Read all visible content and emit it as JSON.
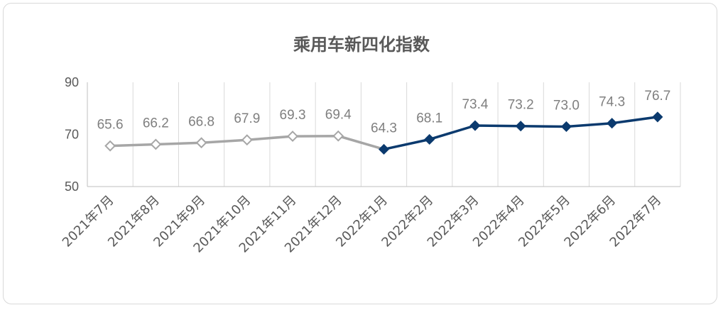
{
  "chart_data": {
    "type": "line",
    "title": "乘用车新四化指数",
    "categories": [
      "2021年7月",
      "2021年8月",
      "2021年9月",
      "2021年10月",
      "2021年11月",
      "2021年12月",
      "2022年1月",
      "2022年2月",
      "2022年3月",
      "2022年4月",
      "2022年5月",
      "2022年6月",
      "2022年7月"
    ],
    "values": [
      65.6,
      66.2,
      66.8,
      67.9,
      69.3,
      69.4,
      64.3,
      68.1,
      73.4,
      73.2,
      73.0,
      74.3,
      76.7
    ],
    "data_labels": [
      "65.6",
      "66.2",
      "66.8",
      "67.9",
      "69.3",
      "69.4",
      "64.3",
      "68.1",
      "73.4",
      "73.2",
      "73.0",
      "74.3",
      "76.7"
    ],
    "yticks": [
      "50",
      "70",
      "90"
    ],
    "ylim": [
      50,
      90
    ],
    "xlabel": "",
    "ylabel": "",
    "grid": "vertical",
    "legend": "none",
    "colors": {
      "earlier": "#a6a6a6",
      "later": "#0b3a6e",
      "grid": "#d9d9d9",
      "axis": "#bfbfbf"
    }
  }
}
